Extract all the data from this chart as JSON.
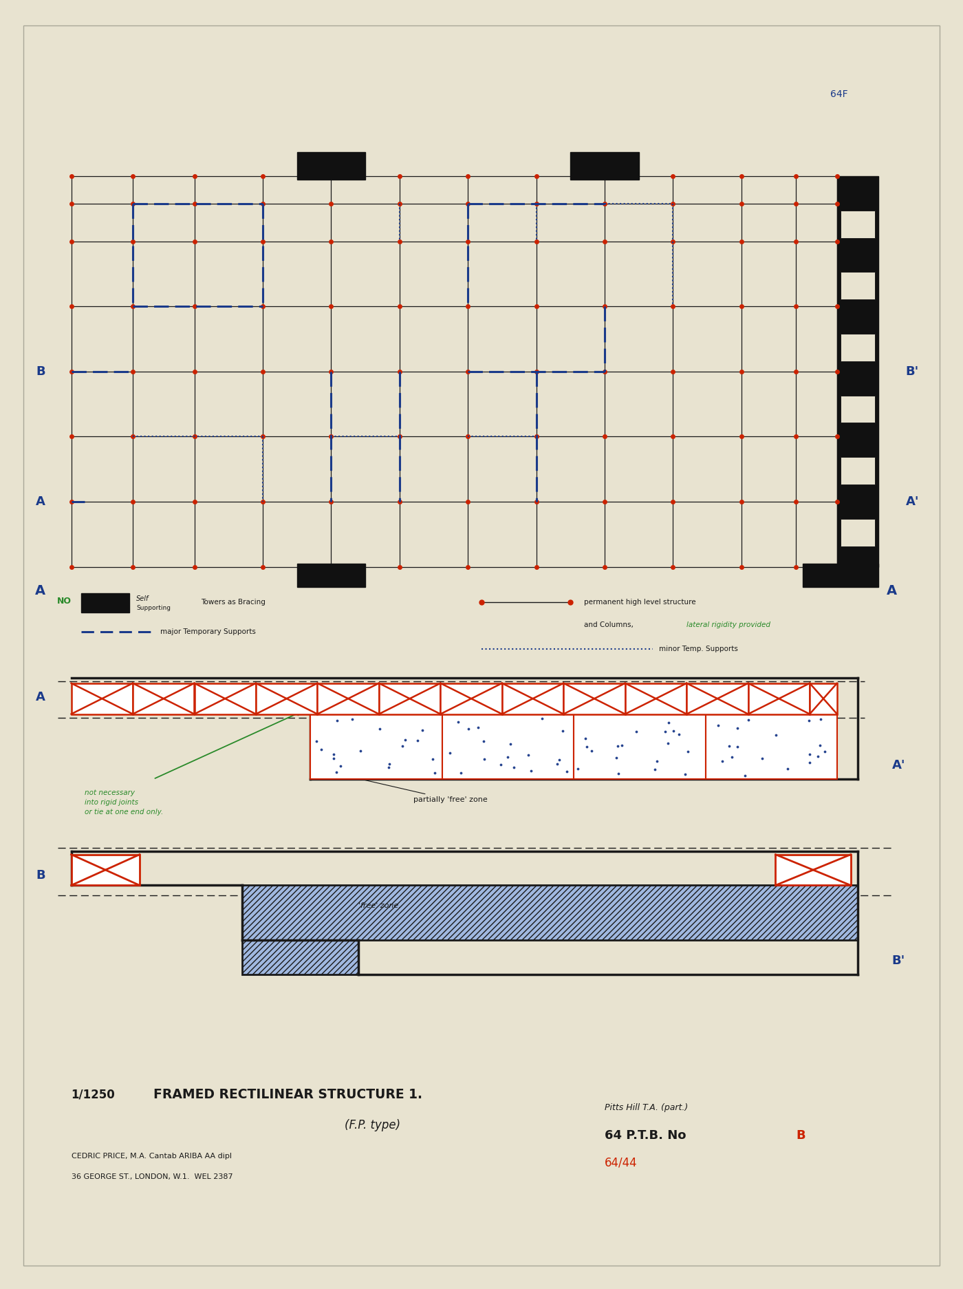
{
  "bg_color": "#e8e3d0",
  "line_color": "#1a1a1a",
  "red_color": "#cc2200",
  "blue_color": "#1a3a8a",
  "green_color": "#2a8a2a",
  "black_fill": "#111111",
  "figsize": [
    14.0,
    18.73
  ],
  "dpi": 100,
  "title_top": "64F",
  "title_main": "FRAMED RECTILINEAR STRUCTURE 1.",
  "title_scale": "1/1250",
  "subtitle": "(F.P. type)",
  "author_line1": "CEDRIC PRICE, M.A. Cantab ARIBA AA dipl",
  "author_line2": "36 GEORGE ST., LONDON, W.1.  WEL 2387",
  "ref_line1": "Pitts Hill T.A. (part.)",
  "ref_line2": "64 P.T.B. No",
  "ref_line2b": "B",
  "ref_line3": "64/44",
  "ann_free": "partially 'free' zone",
  "ann_free2": "'free' zone.",
  "ann_green": "not necessary\ninto rigid joints\nor tie at one end only.",
  "legend_no": "NO"
}
